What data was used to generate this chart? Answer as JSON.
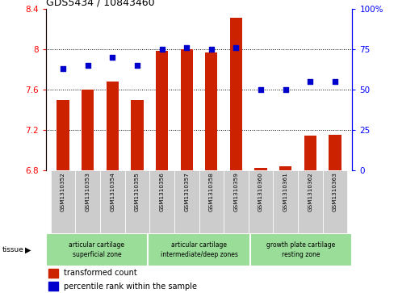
{
  "title": "GDS5434 / 10843460",
  "samples": [
    "GSM1310352",
    "GSM1310353",
    "GSM1310354",
    "GSM1310355",
    "GSM1310356",
    "GSM1310357",
    "GSM1310358",
    "GSM1310359",
    "GSM1310360",
    "GSM1310361",
    "GSM1310362",
    "GSM1310363"
  ],
  "bar_values": [
    7.49,
    7.6,
    7.68,
    7.49,
    7.98,
    8.0,
    7.97,
    8.31,
    6.82,
    6.84,
    7.14,
    7.15
  ],
  "bar_bottom": 6.8,
  "percentile_values": [
    63,
    65,
    70,
    65,
    75,
    76,
    75,
    76,
    50,
    50,
    55,
    55
  ],
  "ylim_left": [
    6.8,
    8.4
  ],
  "ylim_right": [
    0,
    100
  ],
  "yticks_left": [
    6.8,
    7.2,
    7.6,
    8.0,
    8.4
  ],
  "yticks_right": [
    0,
    25,
    50,
    75,
    100
  ],
  "ytick_labels_left": [
    "6.8",
    "7.2",
    "7.6",
    "8",
    "8.4"
  ],
  "ytick_labels_right": [
    "0",
    "25",
    "50",
    "75",
    "100%"
  ],
  "hlines": [
    7.2,
    7.6,
    8.0
  ],
  "bar_color": "#cc2200",
  "dot_color": "#0000cc",
  "tissue_groups": [
    {
      "label": "articular cartilage\nsuperficial zone",
      "start": 0,
      "end": 4
    },
    {
      "label": "articular cartilage\nintermediate/deep zones",
      "start": 4,
      "end": 8
    },
    {
      "label": "growth plate cartilage\nresting zone",
      "start": 8,
      "end": 12
    }
  ],
  "tissue_label": "tissue",
  "legend_items": [
    {
      "color": "#cc2200",
      "label": "transformed count"
    },
    {
      "color": "#0000cc",
      "label": "percentile rank within the sample"
    }
  ],
  "bar_width": 0.5,
  "tissue_color": "#99dd99",
  "label_bg_color": "#cccccc",
  "group_border_color": "white"
}
